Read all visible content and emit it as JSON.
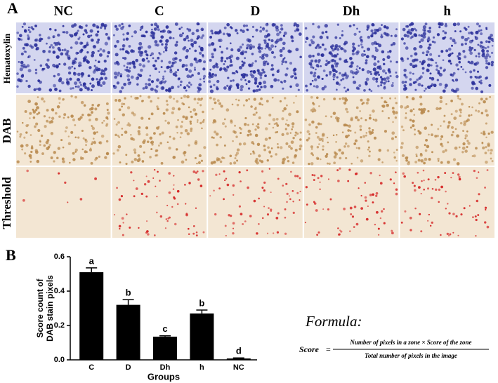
{
  "panel_a": {
    "label": "A",
    "columns": [
      "NC",
      "C",
      "D",
      "Dh",
      "h"
    ],
    "rows": [
      "Hematoxylin",
      "DAB",
      "Threshold"
    ]
  },
  "panel_b_label": "B",
  "chart_data": {
    "type": "bar",
    "categories": [
      "C",
      "D",
      "Dh",
      "h",
      "NC"
    ],
    "values": [
      0.51,
      0.32,
      0.135,
      0.27,
      0.008
    ],
    "errors": [
      0.025,
      0.03,
      0.005,
      0.02,
      0.003
    ],
    "letters": [
      "a",
      "b",
      "c",
      "b",
      "d"
    ],
    "color": "#000000",
    "ylabel": [
      "Score count of",
      "DAB stain pixels"
    ],
    "xlabel": "Groups",
    "ylim": [
      0,
      0.6
    ],
    "yticks": [
      {
        "value": 0,
        "label": "0.0"
      },
      0.2,
      0.4,
      0.6
    ]
  },
  "formula": {
    "title": "Formula:",
    "lhs": "Score",
    "equals": "=",
    "numerator": "Number of pixels in a zone × Score of the zone",
    "denominator": "Total number of pixels in the image"
  }
}
